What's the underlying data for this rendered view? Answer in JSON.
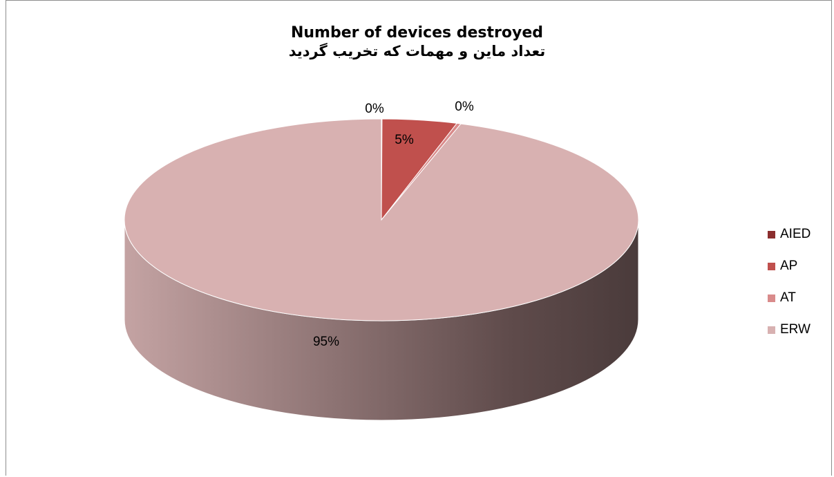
{
  "chart_data": {
    "type": "pie",
    "title": "Number of devices destroyed",
    "subtitle": "تعداد ماین و مهمات که تخریب گردید",
    "categories": [
      "AIED",
      "AP",
      "AT",
      "ERW"
    ],
    "values": [
      0.04,
      4.7,
      0.26,
      95.0
    ],
    "data_labels": [
      "0%",
      "5%",
      "0%",
      "95%"
    ],
    "colors": [
      "#8B2E2E",
      "#C0504D",
      "#D98B8B",
      "#D8B1B1"
    ],
    "legend_position": "right",
    "style": "3d"
  }
}
